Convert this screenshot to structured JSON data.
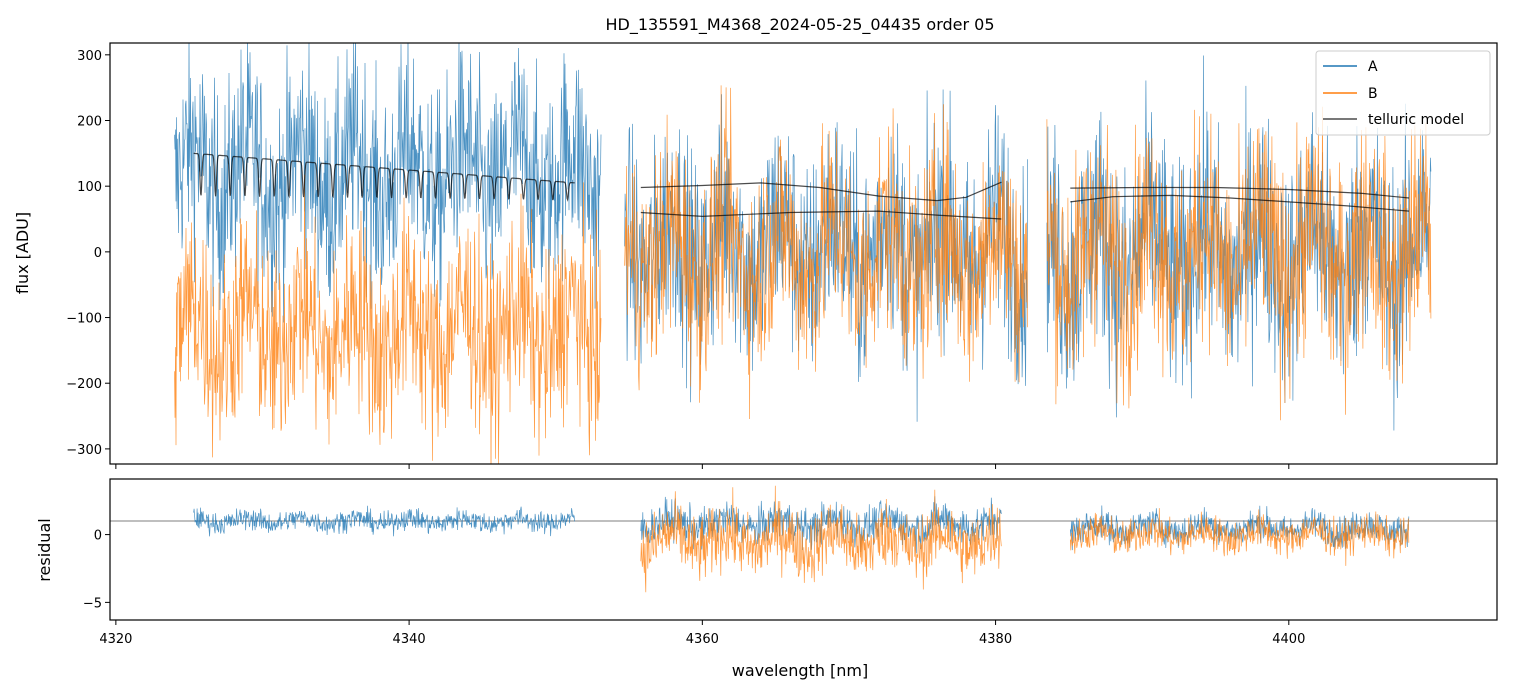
{
  "chart_data": {
    "type": "line",
    "title": "HD_135591_M4368_2024-05-25_04435  order 05",
    "xlabel": "wavelength [nm]",
    "xlim": [
      4319.6,
      4414.2
    ],
    "xticks": [
      4320,
      4340,
      4360,
      4380,
      4400
    ],
    "xtick_labels": [
      "4320",
      "4340",
      "4360",
      "4380",
      "4400"
    ],
    "legend": {
      "placement": "top-right",
      "entries": [
        "A",
        "B",
        "telluric model"
      ]
    },
    "colors": {
      "A": "#1f77b4",
      "B": "#ff7f0e",
      "telluric model": "#000000"
    },
    "panels": [
      {
        "id": "flux",
        "ylabel": "flux [ADU]",
        "ylim": [
          -323,
          318
        ],
        "yticks": [
          300,
          200,
          100,
          0,
          -100,
          -200,
          -300
        ],
        "ytick_labels": [
          "300",
          "200",
          "100",
          "0",
          "−100",
          "−200",
          "−300"
        ],
        "segments": [
          {
            "x0": 4324.0,
            "x1": 4353.1,
            "A": {
              "center": 120,
              "spread": 180
            },
            "B": {
              "center": -120,
              "spread": 170
            }
          },
          {
            "x0": 4354.7,
            "x1": 4382.2,
            "A": {
              "center": 10,
              "spread": 190
            },
            "B": {
              "center": 0,
              "spread": 180
            }
          },
          {
            "x0": 4383.5,
            "x1": 4409.7,
            "A": {
              "center": 0,
              "spread": 200
            },
            "B": {
              "center": 0,
              "spread": 190
            }
          }
        ],
        "telluric_model": [
          {
            "x0": 4325.3,
            "x1": 4351.3,
            "level": 150,
            "end_level": 105,
            "n_lines": 26,
            "depth": 65
          },
          {
            "x": [
              4355.8,
              4360,
              4364,
              4368,
              4372,
              4376,
              4378,
              4380.4
            ],
            "y": [
              98,
              101,
              105,
              98,
              85,
              78,
              83,
              106
            ]
          },
          {
            "x": [
              4355.8,
              4360,
              4366,
              4372,
              4376,
              4380.4
            ],
            "y": [
              60,
              54,
              60,
              62,
              56,
              50
            ]
          },
          {
            "x": [
              4385.1,
              4390,
              4395,
              4400,
              4405,
              4408.2
            ],
            "y": [
              97,
              98,
              98,
              95,
              89,
              82
            ]
          },
          {
            "x": [
              4385.1,
              4388,
              4392,
              4396,
              4400,
              4404,
              4408.2
            ],
            "y": [
              76,
              84,
              86,
              82,
              76,
              70,
              62
            ]
          }
        ]
      },
      {
        "id": "residual",
        "ylabel": "residual",
        "ylim": [
          -6.3,
          4.1
        ],
        "yticks": [
          0,
          -5
        ],
        "ytick_labels": [
          "0",
          "−5"
        ],
        "reference_line": 1.0,
        "segments": [
          {
            "x0": 4325.3,
            "x1": 4351.3,
            "A": {
              "center": 1.0,
              "spread": 0.9
            },
            "B": null
          },
          {
            "x0": 4355.8,
            "x1": 4380.4,
            "A": {
              "center": 0.8,
              "spread": 1.6
            },
            "B": {
              "center": -0.5,
              "spread": 2.8
            }
          },
          {
            "x0": 4385.1,
            "x1": 4408.2,
            "A": {
              "center": 0.5,
              "spread": 1.3
            },
            "B": {
              "center": 0.0,
              "spread": 1.5
            }
          }
        ]
      }
    ]
  }
}
